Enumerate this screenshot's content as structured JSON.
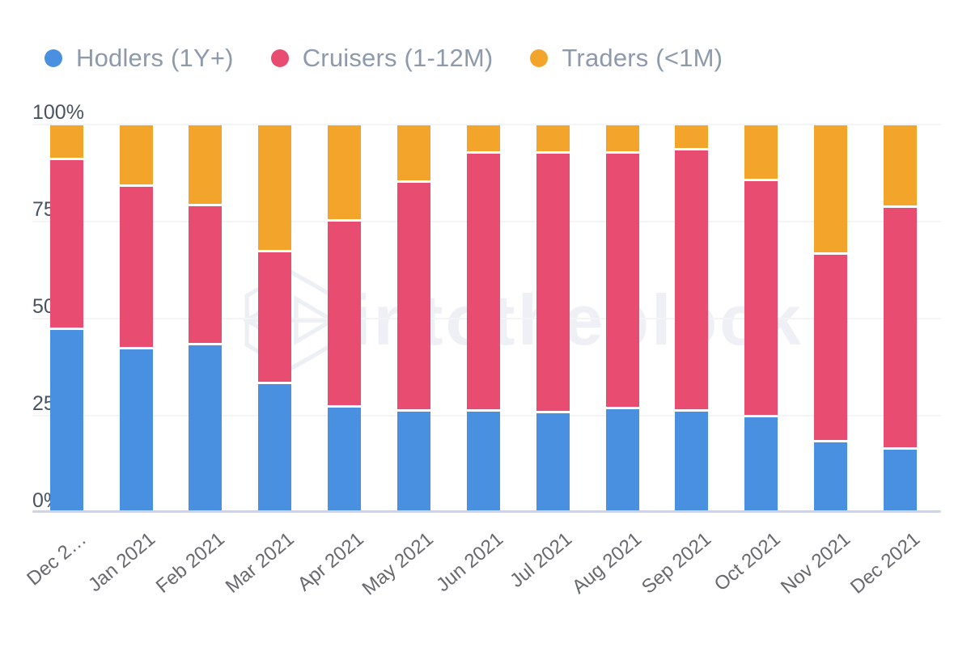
{
  "chart_data": {
    "type": "bar",
    "stacked": true,
    "stack_unit": "percent",
    "title": "",
    "xlabel": "",
    "ylabel": "",
    "ylim": [
      0,
      100
    ],
    "grid": true,
    "legend_position": "top-left",
    "yticks": [
      "100%",
      "75%",
      "50%",
      "25%",
      "0%"
    ],
    "categories": [
      "Dec 2…",
      "Jan 2021",
      "Feb 2021",
      "Mar 2021",
      "Apr 2021",
      "May 2021",
      "Jun 2021",
      "Jul 2021",
      "Aug 2021",
      "Sep 2021",
      "Oct 2021",
      "Nov 2021",
      "Dec 2021"
    ],
    "series": [
      {
        "name": "Hodlers (1Y+)",
        "color": "#4a90e0",
        "values": [
          47,
          42,
          43,
          33,
          27,
          26,
          26,
          25.5,
          26.5,
          26,
          24.5,
          18,
          16
        ]
      },
      {
        "name": "Cruisers (1-12M)",
        "color": "#e84c71",
        "values": [
          44,
          42,
          36,
          34,
          48,
          59,
          66.5,
          67,
          66,
          67.5,
          61,
          48.5,
          62.5
        ]
      },
      {
        "name": "Traders (<1M)",
        "color": "#f3a42a",
        "values": [
          9,
          16,
          21,
          33,
          25,
          15,
          7.5,
          7.5,
          7.5,
          6.5,
          14.5,
          33.5,
          21.5
        ]
      }
    ]
  },
  "watermark": {
    "text": "intotheblock",
    "logo": "intotheblock-logo",
    "color": "#eef0f5"
  },
  "style_colors": {
    "gridline": "#f3f4f6",
    "axis_line": "#ccd4ea",
    "ytick_text": "#49535f",
    "xtick_text": "#67696d",
    "legend_text": "#8d9aab",
    "background": "#ffffff"
  }
}
